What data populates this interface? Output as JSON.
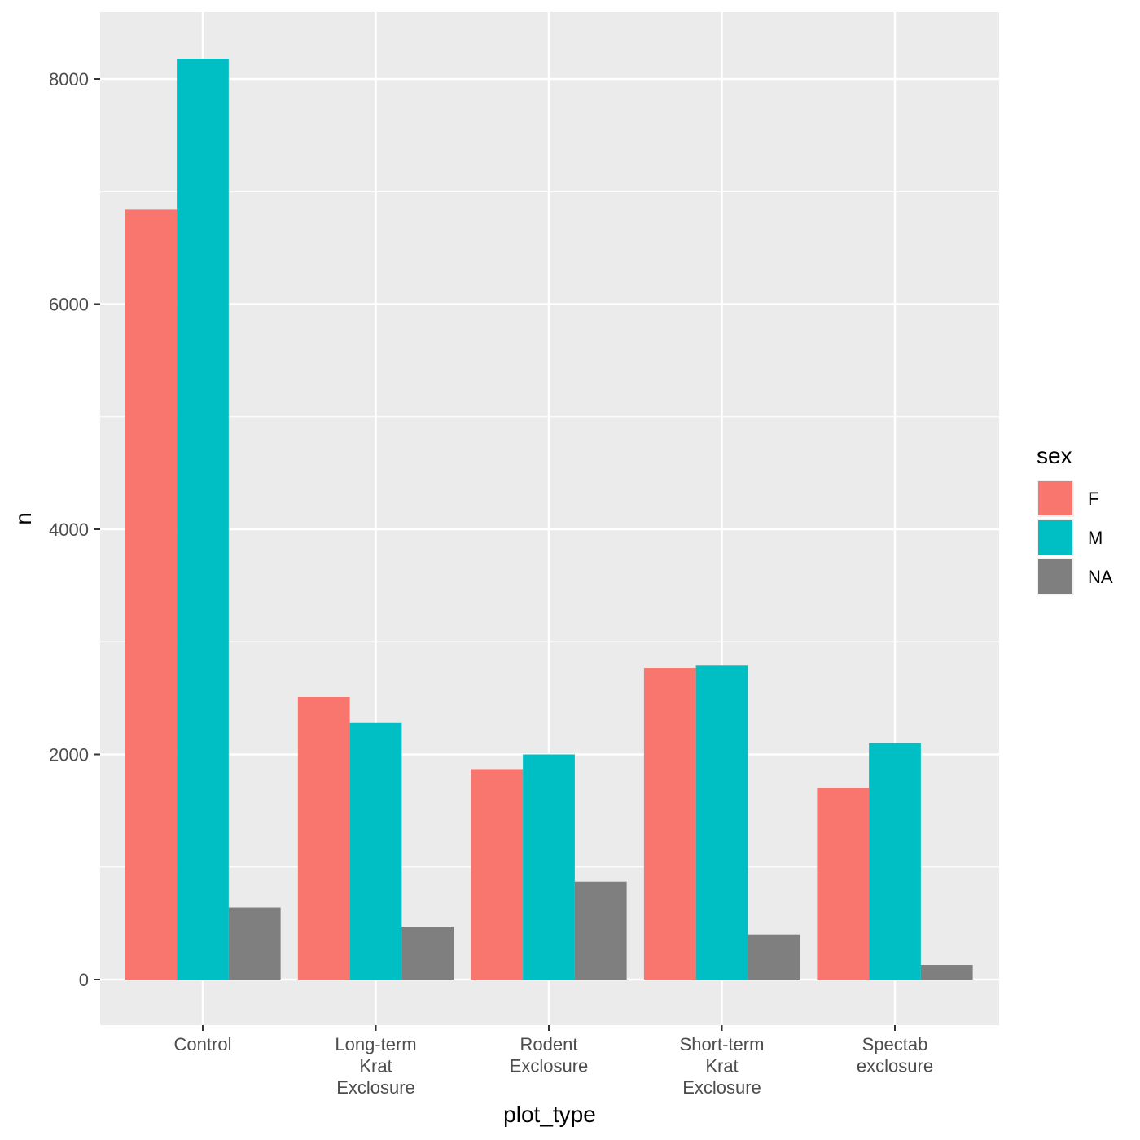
{
  "chart_data": {
    "type": "bar",
    "categories": [
      "Control",
      "Long-term\nKrat\nExclosure",
      "Rodent\nExclosure",
      "Short-term\nKrat\nExclosure",
      "Spectab\nexclosure"
    ],
    "series": [
      {
        "name": "F",
        "color": "#F8766D",
        "values": [
          6840,
          2510,
          1870,
          2770,
          1700
        ]
      },
      {
        "name": "M",
        "color": "#00BFC4",
        "values": [
          8180,
          2280,
          2000,
          2790,
          2100
        ]
      },
      {
        "name": "NA",
        "color": "#7F7F7F",
        "values": [
          640,
          470,
          870,
          400,
          130
        ]
      }
    ],
    "xlabel": "plot_type",
    "ylabel": "n",
    "ylim": [
      -400,
      8600
    ],
    "yticks": [
      0,
      2000,
      4000,
      6000,
      8000
    ],
    "grid": true,
    "legend": {
      "title": "sex",
      "position": "right"
    },
    "colors": {
      "panel_background": "#EBEBEB",
      "grid": "#FFFFFF"
    }
  }
}
